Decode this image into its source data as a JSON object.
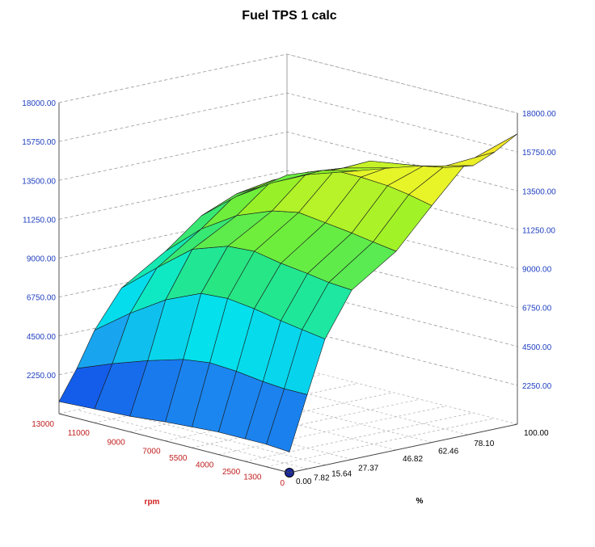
{
  "chart_data": {
    "type": "surface3d",
    "title": "Fuel TPS 1 calc",
    "xlabel": "%",
    "ylabel": "rpm",
    "zlim": [
      0,
      18000
    ],
    "z_ticks": [
      "18000.00",
      "15750.00",
      "13500.00",
      "11250.00",
      "9000.00",
      "6750.00",
      "4500.00",
      "2250.00"
    ],
    "rpm_ticks": [
      "13000",
      "11000",
      "9000",
      "7000",
      "5500",
      "4000",
      "2500",
      "1300",
      "0"
    ],
    "tps_ticks": [
      "0.00",
      "7.82",
      "15.64",
      "27.37",
      "46.82",
      "62.46",
      "78.10",
      "100.00"
    ],
    "tps": [
      0.0,
      7.82,
      15.64,
      27.37,
      46.82,
      62.46,
      78.1,
      100.0
    ],
    "rpm": [
      0,
      1300,
      2500,
      4000,
      5500,
      7000,
      9000,
      11000,
      13000
    ],
    "z": [
      [
        1200,
        4300,
        7300,
        9800,
        11500,
        13700,
        15800,
        16800,
        12500
      ],
      [
        1300,
        4300,
        7500,
        9900,
        11700,
        14000,
        15200,
        15400,
        12500
      ],
      [
        1300,
        4400,
        7700,
        10100,
        11900,
        14200,
        14900,
        14300,
        12000
      ],
      [
        1300,
        4600,
        8000,
        10300,
        12100,
        14300,
        14600,
        13800,
        11800
      ],
      [
        1200,
        4700,
        8200,
        10600,
        12300,
        14300,
        14400,
        13500,
        11600
      ],
      [
        1100,
        4500,
        8100,
        10500,
        12000,
        13800,
        13600,
        13000,
        11300
      ],
      [
        900,
        3900,
        7200,
        9800,
        11200,
        12800,
        12700,
        12300,
        11100
      ],
      [
        800,
        3200,
        5900,
        8200,
        9900,
        11500,
        11700,
        11800,
        11000
      ],
      [
        700,
        2400,
        4400,
        6500,
        8100,
        9700,
        10400,
        11000,
        10700
      ]
    ],
    "grid": true
  },
  "marker": {
    "label": "current-value"
  }
}
